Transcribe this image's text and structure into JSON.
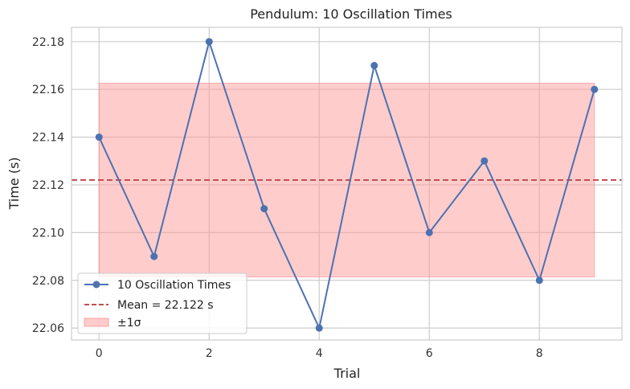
{
  "chart_data": {
    "type": "line",
    "title": "Pendulum: 10 Oscillation Times",
    "xlabel": "Trial",
    "ylabel": "Time (s)",
    "xlim": [
      -0.5,
      9.5
    ],
    "ylim": [
      22.055,
      22.186
    ],
    "xticks": [
      0,
      2,
      4,
      6,
      8
    ],
    "yticks": [
      22.06,
      22.08,
      22.1,
      22.12,
      22.14,
      22.16,
      22.18
    ],
    "ytick_labels": [
      "22.06",
      "22.08",
      "22.10",
      "22.12",
      "22.14",
      "22.16",
      "22.18"
    ],
    "grid": true,
    "legend_position": "lower-left",
    "series": [
      {
        "name": "10 Oscillation Times",
        "x": [
          0,
          1,
          2,
          3,
          4,
          5,
          6,
          7,
          8,
          9
        ],
        "values": [
          22.14,
          22.09,
          22.18,
          22.11,
          22.06,
          22.17,
          22.1,
          22.13,
          22.08,
          22.16
        ],
        "color": "#4c72b0",
        "marker": "circle"
      }
    ],
    "mean": {
      "label": "Mean = 22.122 s",
      "value": 22.122,
      "color": "#c44e52",
      "style": "dashed"
    },
    "band": {
      "label": "±1σ",
      "lower": 22.0814,
      "upper": 22.1626,
      "x_range": [
        0,
        9
      ],
      "color": "#ff9999"
    }
  }
}
